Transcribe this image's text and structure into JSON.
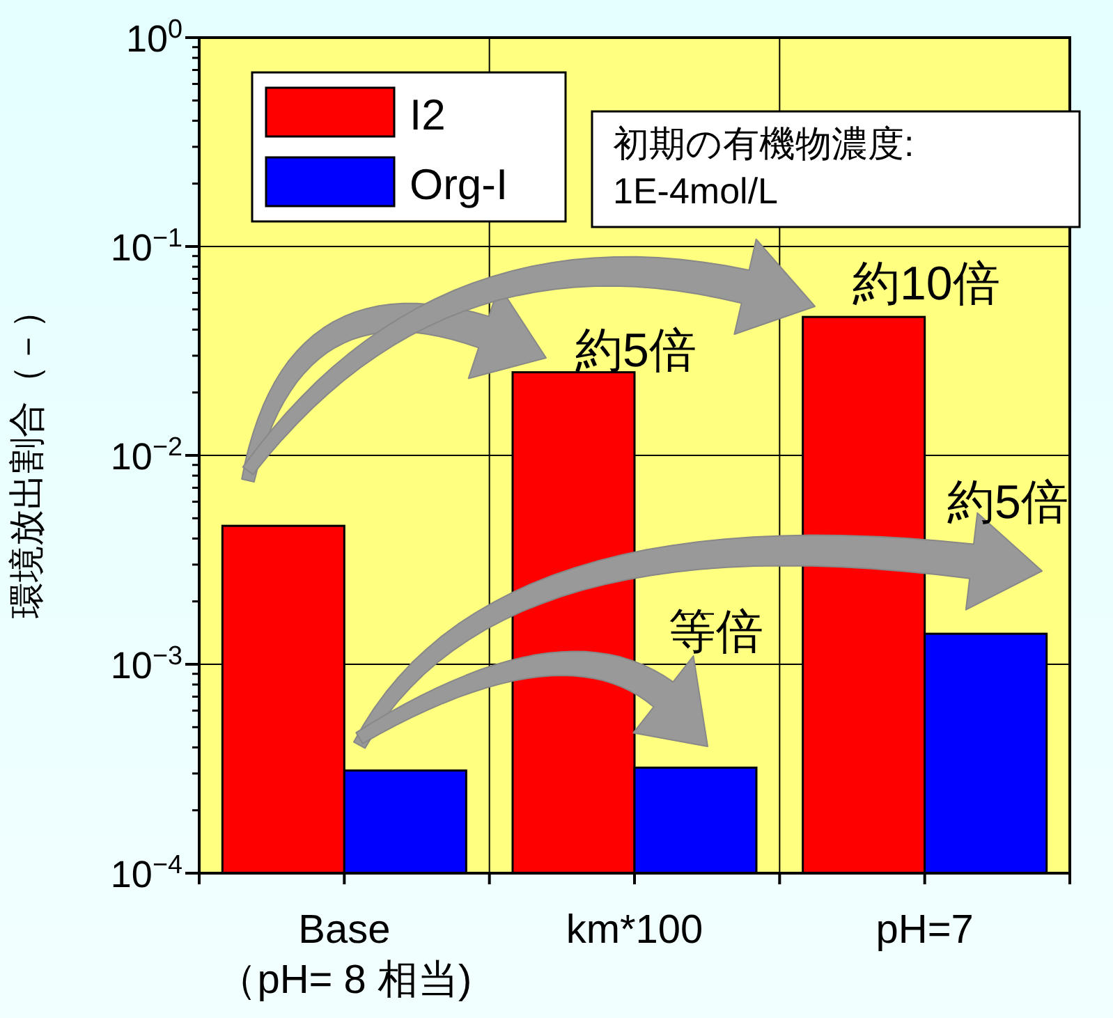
{
  "chart_data": {
    "type": "bar",
    "ylabel": "環境放出割合（－）",
    "categories": [
      "Base\n（pH= 8 相当)",
      "km*100",
      "pH=7"
    ],
    "series": [
      {
        "name": "I2",
        "color": "#ff0000",
        "values": [
          0.0046,
          0.025,
          0.046
        ]
      },
      {
        "name": "Org-I",
        "color": "#0000ff",
        "values": [
          0.00031,
          0.00032,
          0.0014
        ]
      }
    ],
    "log": true,
    "ylim": [
      0.0001,
      1
    ],
    "yticks": [
      {
        "value": 0.0001,
        "label": "10$^{−4}$"
      },
      {
        "value": 0.001,
        "label": "10$^{−3}$"
      },
      {
        "value": 0.01,
        "label": "10$^{−2}$"
      },
      {
        "value": 0.1,
        "label": "10$^{−1}$"
      },
      {
        "value": 1,
        "label": "10$^{0}$"
      }
    ],
    "grid": true,
    "legend": "top left",
    "annotations": [
      "初期の有機物濃度:\n1E-4mol/L",
      "約5倍",
      "約10倍",
      "約5倍",
      "等倍"
    ]
  }
}
